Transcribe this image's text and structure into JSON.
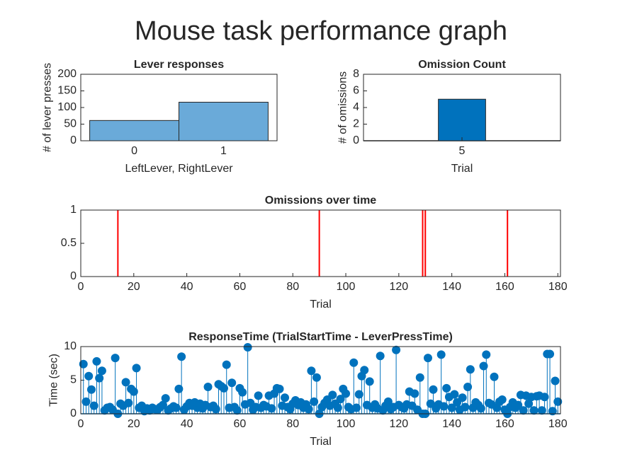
{
  "title": "Mouse task performance graph",
  "chart_data": [
    {
      "type": "histogram",
      "title": "Lever responses",
      "xlabel": "LeftLever, RightLever",
      "ylabel": "# of lever presses",
      "bins": [
        -0.5,
        0.5,
        1.5
      ],
      "values": [
        61,
        116
      ],
      "color": "#6aaad9",
      "xlim": [
        -0.6,
        1.6
      ],
      "xticks": [
        0,
        1
      ],
      "ylim": [
        0,
        200
      ],
      "yticks": [
        0,
        50,
        100,
        150,
        200
      ]
    },
    {
      "type": "bar",
      "title": "Omission Count",
      "xlabel": "Trial",
      "ylabel": "# of omissions",
      "categories": [
        "5"
      ],
      "values": [
        5
      ],
      "color": "#0072bd",
      "ylim": [
        0,
        8
      ],
      "yticks": [
        0,
        2,
        4,
        6,
        8
      ]
    },
    {
      "type": "spike",
      "title": "Omissions over time",
      "xlabel": "Trial",
      "x": [
        14,
        90,
        129,
        130,
        161
      ],
      "values": [
        1,
        1,
        1,
        1,
        1
      ],
      "color": "#ff0000",
      "xlim": [
        0,
        181
      ],
      "xticks": [
        0,
        20,
        40,
        60,
        80,
        100,
        120,
        140,
        160,
        180
      ],
      "ylim": [
        0,
        1
      ],
      "yticks": [
        0,
        0.5,
        1
      ]
    },
    {
      "type": "stem",
      "title": "ResponseTime (TrialStartTime - LeverPressTime)",
      "xlabel": "Trial",
      "ylabel": "Time (sec)",
      "x": [
        1,
        2,
        3,
        4,
        5,
        6,
        7,
        8,
        9,
        10,
        11,
        12,
        13,
        14,
        15,
        16,
        17,
        18,
        19,
        20,
        21,
        22,
        23,
        24,
        25,
        26,
        27,
        28,
        29,
        30,
        31,
        32,
        33,
        34,
        35,
        36,
        37,
        38,
        39,
        40,
        41,
        42,
        43,
        44,
        45,
        46,
        47,
        48,
        49,
        50,
        51,
        52,
        53,
        54,
        55,
        56,
        57,
        58,
        59,
        60,
        61,
        62,
        63,
        64,
        65,
        66,
        67,
        68,
        69,
        70,
        71,
        72,
        73,
        74,
        75,
        76,
        77,
        78,
        79,
        80,
        81,
        82,
        83,
        84,
        85,
        86,
        87,
        88,
        89,
        90,
        91,
        92,
        93,
        94,
        95,
        96,
        97,
        98,
        99,
        100,
        101,
        102,
        103,
        104,
        105,
        106,
        107,
        108,
        109,
        110,
        111,
        112,
        113,
        114,
        115,
        116,
        117,
        118,
        119,
        120,
        121,
        122,
        123,
        124,
        125,
        126,
        127,
        128,
        129,
        130,
        131,
        132,
        133,
        134,
        135,
        136,
        137,
        138,
        139,
        140,
        141,
        142,
        143,
        144,
        145,
        146,
        147,
        148,
        149,
        150,
        151,
        152,
        153,
        154,
        155,
        156,
        157,
        158,
        159,
        160,
        161,
        162,
        163,
        164,
        165,
        166,
        167,
        168,
        169,
        170,
        171,
        172,
        173,
        174,
        175,
        176,
        177,
        178,
        179,
        180
      ],
      "values": [
        7.4,
        1.8,
        5.6,
        3.6,
        1.2,
        7.8,
        5.3,
        6.4,
        0.5,
        0.9,
        1.0,
        0.6,
        8.3,
        0,
        1.5,
        1.2,
        4.7,
        1.6,
        3.7,
        3.3,
        6.8,
        0.9,
        1.2,
        0.4,
        0.8,
        0.5,
        0.9,
        0.7,
        0.6,
        1.0,
        1.3,
        2.3,
        0.5,
        0.8,
        1.1,
        0.9,
        3.7,
        8.5,
        0.6,
        1.1,
        1.6,
        1.2,
        1.7,
        0.9,
        1.5,
        0.8,
        1.3,
        4.0,
        1.0,
        1.2,
        0.7,
        4.4,
        4.1,
        3.8,
        7.3,
        0.9,
        4.6,
        1.0,
        0.5,
        3.8,
        3.2,
        1.4,
        9.9,
        1.6,
        0.6,
        1.0,
        2.7,
        0.9,
        1.3,
        1.1,
        2.7,
        0.8,
        3.0,
        3.8,
        3.7,
        1.2,
        2.4,
        1.0,
        0.7,
        1.5,
        2.0,
        1.3,
        1.7,
        0.9,
        1.4,
        0.7,
        6.4,
        1.8,
        5.4,
        0,
        1.0,
        1.6,
        2.1,
        1.2,
        2.8,
        1.5,
        0.9,
        2.2,
        3.7,
        3.0,
        1.0,
        0.7,
        7.6,
        0.9,
        2.9,
        5.6,
        6.5,
        1.3,
        4.8,
        0.9,
        1.4,
        0.8,
        8.6,
        0.5,
        1.2,
        1.8,
        0.7,
        1.0,
        9.5,
        1.3,
        1.0,
        0.8,
        1.4,
        3.3,
        1.2,
        3.0,
        0.6,
        5.4,
        0,
        0,
        8.3,
        1.5,
        3.6,
        0.8,
        1.4,
        8.8,
        1.1,
        3.8,
        2.5,
        0.9,
        2.9,
        1.7,
        0.6,
        2.4,
        1.0,
        4.0,
        6.6,
        0.9,
        1.7,
        1.3,
        0.8,
        7.1,
        8.8,
        1.6,
        1.4,
        5.5,
        0.9,
        1.8,
        2.1,
        0.6,
        0,
        1.0,
        1.7,
        0.9,
        1.3,
        2.8,
        0.5,
        2.7,
        1.5,
        2.5,
        0.5,
        2.6,
        2.7,
        0.5,
        2.5,
        8.9,
        8.9,
        0.4,
        4.9,
        1.8
      ],
      "color": "#0072bd",
      "xlim": [
        0,
        181
      ],
      "xticks": [
        0,
        20,
        40,
        60,
        80,
        100,
        120,
        140,
        160,
        180
      ],
      "ylim": [
        0,
        10
      ],
      "yticks": [
        0,
        5,
        10
      ]
    }
  ]
}
